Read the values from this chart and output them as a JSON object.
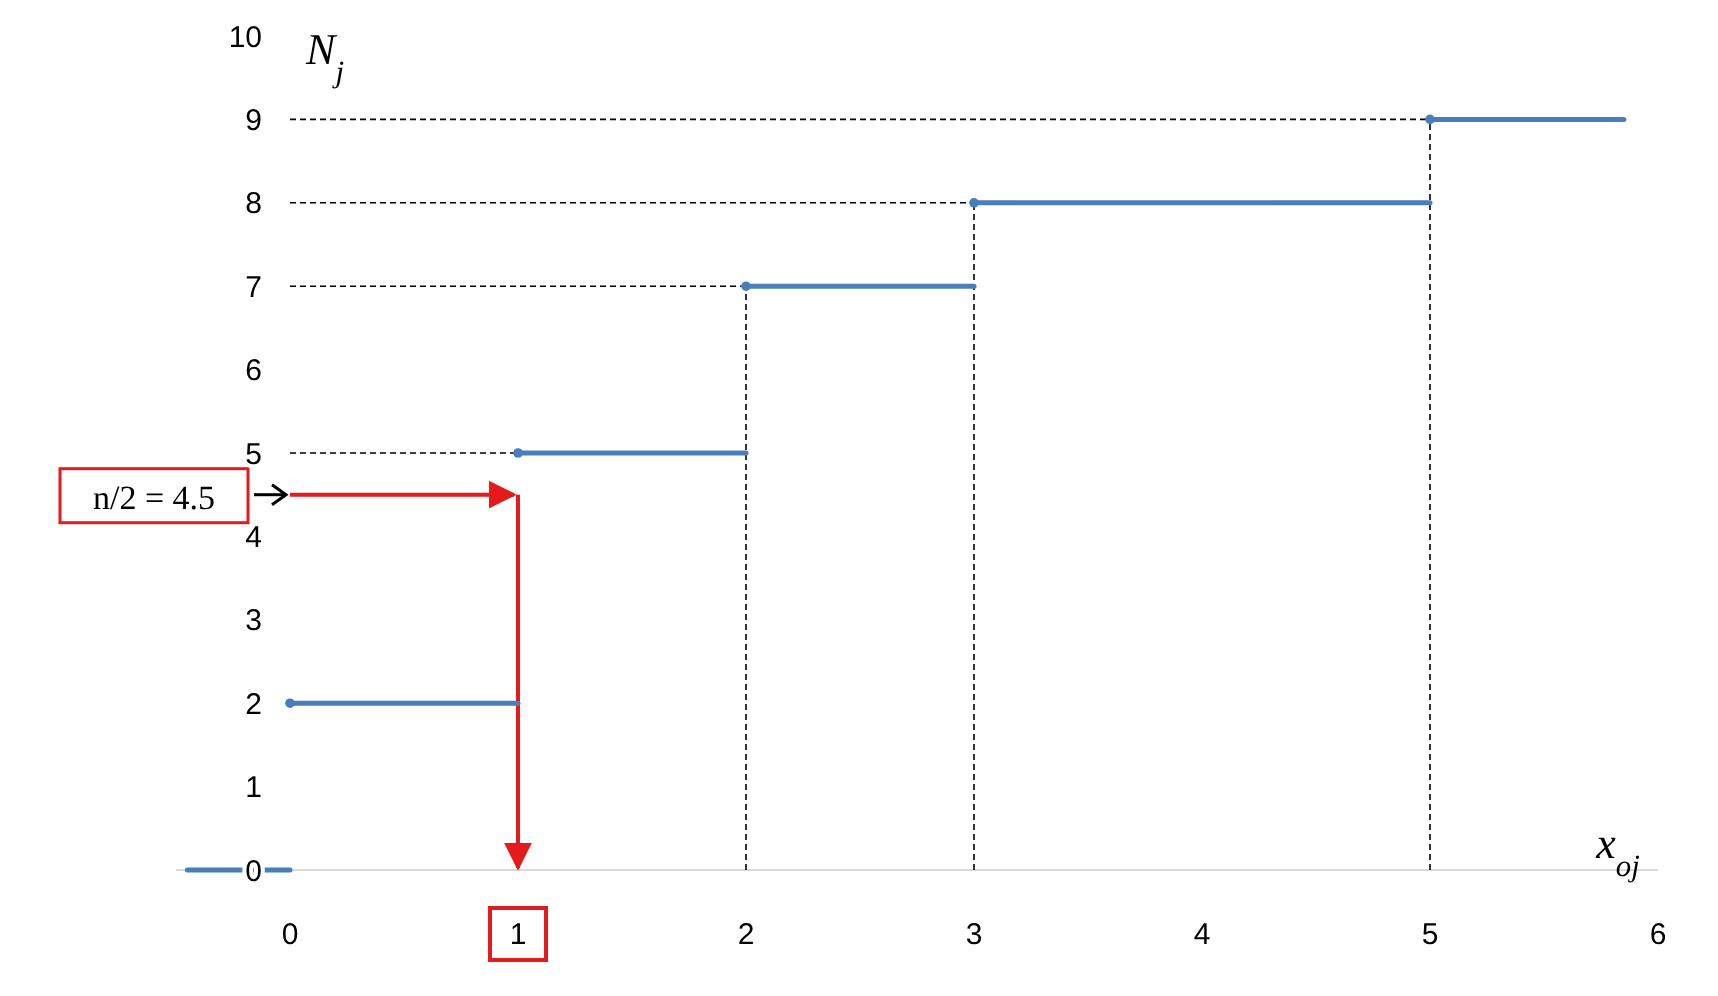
{
  "chart_data": {
    "type": "line",
    "xlabel": "x$_{oj}$",
    "ylabel": "N$_{j}$",
    "xlim": [
      -0.5,
      6
    ],
    "ylim": [
      0,
      10
    ],
    "xticks": [
      0,
      1,
      2,
      3,
      4,
      5,
      6
    ],
    "yticks": [
      0,
      1,
      2,
      3,
      4,
      5,
      6,
      7,
      8,
      9,
      10
    ],
    "grid": false,
    "series": [
      {
        "color": "#4a7ebb",
        "x": [
          -0.45,
          0
        ],
        "values": [
          0,
          0
        ]
      },
      {
        "color": "#4a7ebb",
        "x": [
          0,
          1
        ],
        "values": [
          2,
          2
        ]
      },
      {
        "color": "#4a7ebb",
        "x": [
          1,
          2
        ],
        "values": [
          5,
          5
        ]
      },
      {
        "color": "#4a7ebb",
        "x": [
          2,
          3
        ],
        "values": [
          7,
          7
        ]
      },
      {
        "color": "#4a7ebb",
        "x": [
          3,
          5
        ],
        "values": [
          8,
          8
        ]
      },
      {
        "color": "#4a7ebb",
        "x": [
          5,
          5.85
        ],
        "values": [
          9,
          9
        ]
      },
      {
        "type": "scatter",
        "color": "#4a7ebb",
        "marker": "circle",
        "x": [
          0,
          1,
          2,
          3,
          5
        ],
        "values": [
          2,
          5,
          7,
          8,
          9
        ]
      }
    ],
    "ref_lines": [
      {
        "axis": "y",
        "value": 5,
        "color": "#000000",
        "line_style": "dashed"
      },
      {
        "axis": "y",
        "value": 7,
        "color": "#000000",
        "line_style": "dashed"
      },
      {
        "axis": "y",
        "value": 8,
        "color": "#000000",
        "line_style": "dashed"
      },
      {
        "axis": "y",
        "value": 9,
        "color": "#000000",
        "line_style": "dashed"
      },
      {
        "axis": "x",
        "value": 2,
        "color": "#000000",
        "line_style": "dashed"
      },
      {
        "axis": "x",
        "value": 3,
        "color": "#000000",
        "line_style": "dashed"
      },
      {
        "axis": "x",
        "value": 5,
        "color": "#000000",
        "line_style": "dashed"
      },
      {
        "axis": "y",
        "value": 4.5,
        "label": "n/2 = 4.5",
        "color": "#e41a1c",
        "line_style": "solid"
      },
      {
        "axis": "x",
        "value": 1,
        "color": "#e41a1c",
        "line_style": "solid"
      }
    ]
  }
}
